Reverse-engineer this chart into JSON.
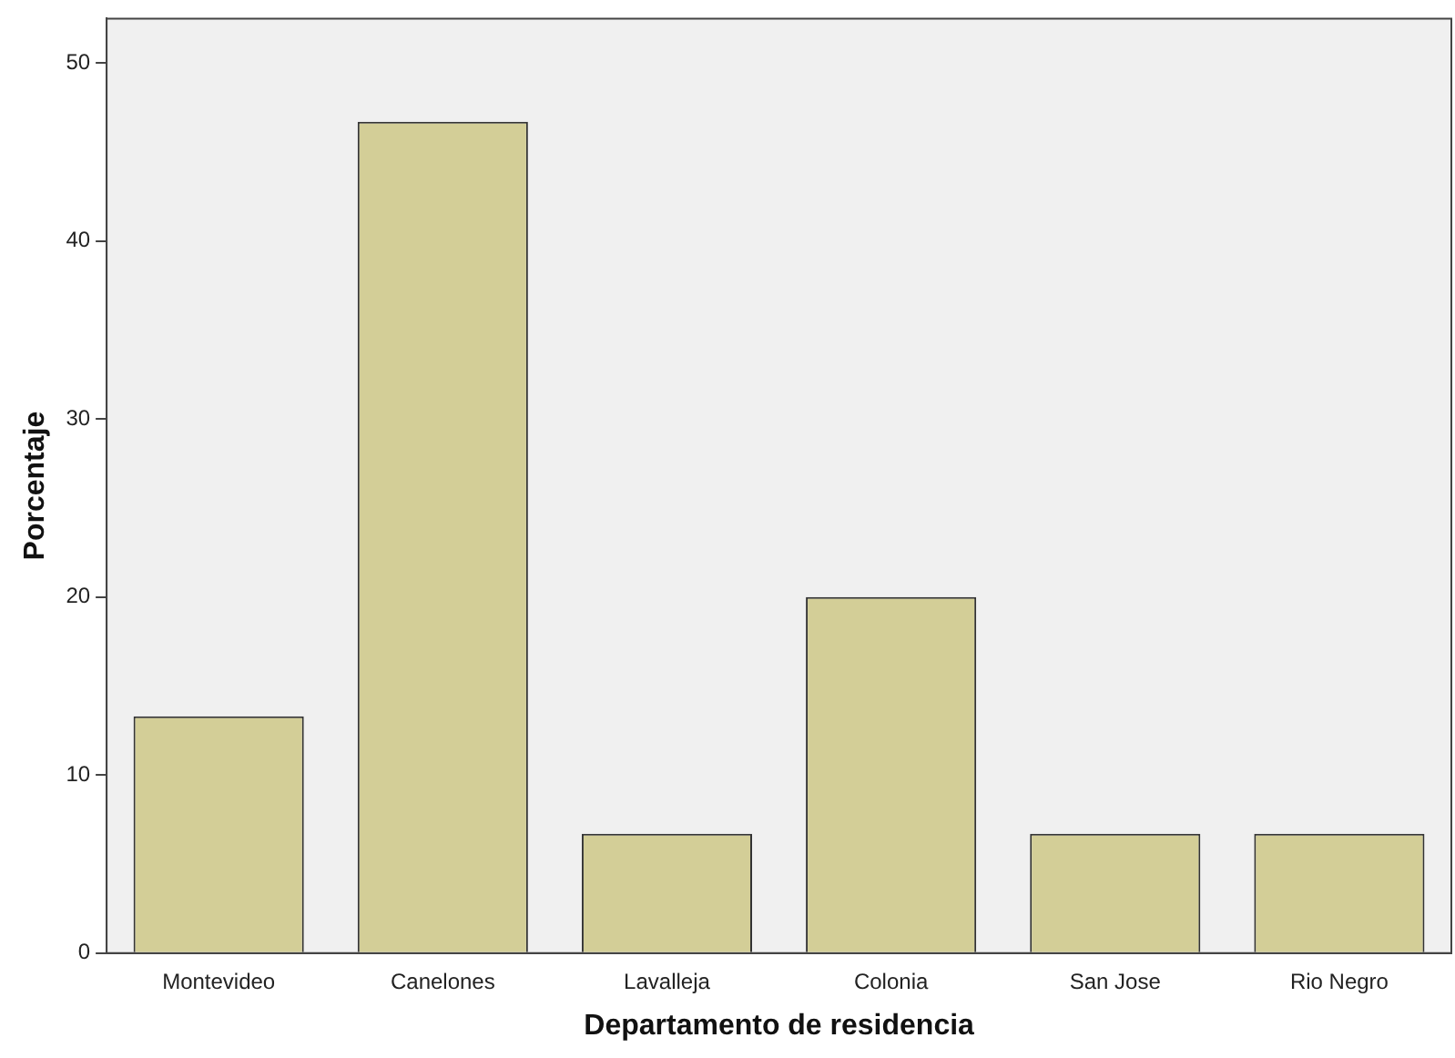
{
  "chart_data": {
    "type": "bar",
    "xlabel": "Departamento de residencia",
    "ylabel": "Porcentaje",
    "categories": [
      "Montevideo",
      "Canelones",
      "Lavalleja",
      "Colonia",
      "San Jose",
      "Rio Negro"
    ],
    "values": [
      13.3,
      46.7,
      6.7,
      20,
      6.7,
      6.7
    ],
    "color": "#d3ce97",
    "ylim": [
      0,
      52.5
    ],
    "yticks": [
      0,
      10,
      20,
      30,
      40,
      50
    ],
    "grid": false,
    "legend": false
  }
}
